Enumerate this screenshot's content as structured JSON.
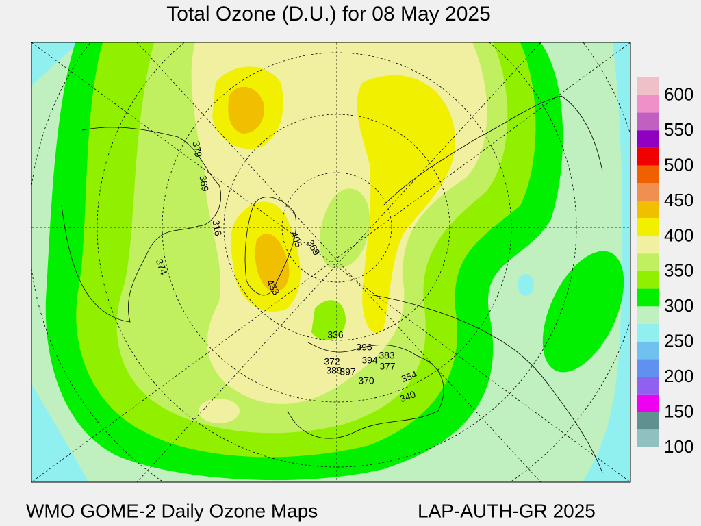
{
  "header": {
    "title": "Total Ozone (D.U.) for 08 May 2025"
  },
  "footer": {
    "left": "WMO GOME-2 Daily Ozone Maps",
    "right": "LAP-AUTH-GR 2025"
  },
  "colorbar": {
    "lim": [
      100,
      625
    ],
    "colors": [
      "#90c0c0",
      "#609090",
      "#f000f0",
      "#9060f0",
      "#6090f0",
      "#70c0f0",
      "#90f0f0",
      "#c0f0c0",
      "#00f000",
      "#90f000",
      "#c0f060",
      "#f0f0a0",
      "#f0f000",
      "#f0c000",
      "#f09050",
      "#f06000",
      "#f00000",
      "#9000c0",
      "#c060c0",
      "#f090c8",
      "#f0c0c8"
    ],
    "ticks": [
      100,
      150,
      200,
      250,
      300,
      350,
      400,
      450,
      500,
      550,
      600
    ]
  },
  "stations": [
    379,
    369,
    316,
    374,
    405,
    369,
    433,
    336,
    396,
    372,
    389,
    397,
    394,
    383,
    377,
    370,
    354,
    340
  ]
}
